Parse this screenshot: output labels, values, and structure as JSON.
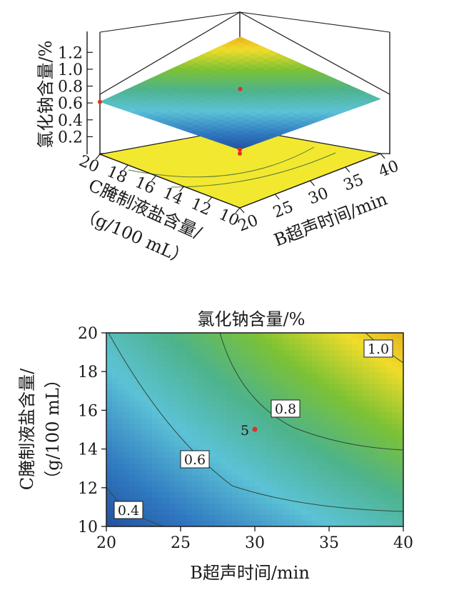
{
  "chart_data": [
    {
      "type": "surface",
      "zlabel": "氯化钠含量/%",
      "xlabel": "B超声时间/min",
      "ylabel_line1": "C腌制液盐含量/",
      "ylabel_line2": "（g/100 mL）",
      "x_ticks": [
        "20",
        "25",
        "30",
        "35",
        "40"
      ],
      "y_ticks": [
        "20",
        "18",
        "16",
        "14",
        "12",
        "10"
      ],
      "z_ticks": [
        "1.2",
        "1.0",
        "0.8",
        "0.6",
        "0.4",
        "0.2"
      ],
      "xlim": [
        20,
        40
      ],
      "ylim": [
        10,
        20
      ],
      "zlim": [
        0,
        1.2
      ],
      "corner_values": [
        {
          "x": 20,
          "y": 10,
          "z": 0.3
        },
        {
          "x": 40,
          "y": 10,
          "z": 0.63
        },
        {
          "x": 20,
          "y": 20,
          "z": 0.6
        },
        {
          "x": 40,
          "y": 20,
          "z": 1.1
        }
      ],
      "design_points": [
        {
          "x": 30,
          "y": 15,
          "z": 0.75
        },
        {
          "x": 20,
          "y": 20,
          "z": 0.6
        },
        {
          "x": 20,
          "y": 10,
          "z": 0.3
        }
      ],
      "colormap": [
        "#1e3f8f",
        "#2f78c0",
        "#5cc2d6",
        "#4db38b",
        "#7dc234",
        "#f0dc2a",
        "#e39d18"
      ],
      "floor_color": "#f2e82f"
    },
    {
      "type": "contour",
      "title": "氯化钠含量/%",
      "xlabel": "B超声时间/min",
      "ylabel_line1": "C腌制液盐含量/",
      "ylabel_line2": "（g/100 mL）",
      "x_ticks": [
        "20",
        "25",
        "30",
        "35",
        "40"
      ],
      "y_ticks": [
        "20",
        "18",
        "16",
        "14",
        "12",
        "10"
      ],
      "xlim": [
        20,
        40
      ],
      "ylim": [
        10,
        20
      ],
      "contour_labels": [
        "0.4",
        "0.6",
        "0.8",
        "1.0"
      ],
      "center_point": {
        "x": 30,
        "y": 15,
        "label": "5"
      },
      "colormap": [
        "#1e3f8f",
        "#2f78c0",
        "#5cc2d6",
        "#4db38b",
        "#7dc234",
        "#f0dc2a",
        "#e39d18"
      ]
    }
  ]
}
